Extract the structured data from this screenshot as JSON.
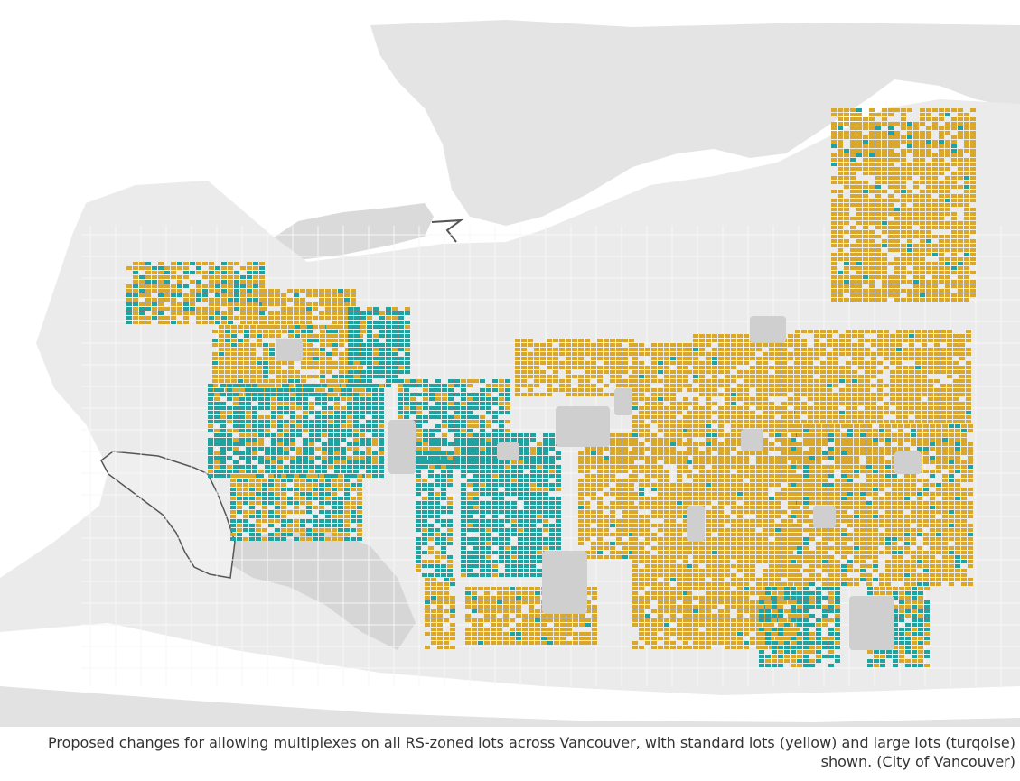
{
  "figure": {
    "caption_line_1": "Proposed changes for allowing multiplexes on all RS-zoned lots across Vancouver, with standard lots (yellow) and large lots (turqoise)",
    "caption_line_2": "shown. (City of Vancouver)"
  },
  "map": {
    "subject": "RS-zoned lots across Vancouver",
    "colors": {
      "water": "#ffffff",
      "land": "#e9e9e9",
      "neighbour_land": "#dcdcdc",
      "parks": "#cfcfcf",
      "roads": "#f7f7f7",
      "standard_lots": "#d9a72a",
      "large_lots": "#1fa3a0",
      "outline": "#555555"
    }
  }
}
